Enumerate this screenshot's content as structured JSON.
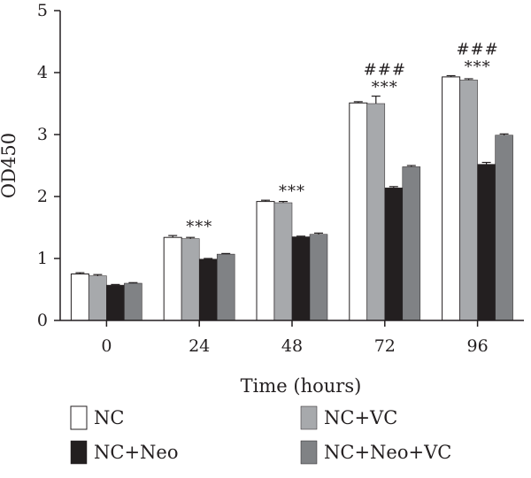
{
  "chart_data": {
    "type": "bar",
    "xlabel": "Time (hours)",
    "ylabel": "OD450",
    "ylim": [
      0,
      5
    ],
    "yticks": [
      0,
      1,
      2,
      3,
      4,
      5
    ],
    "categories": [
      "0",
      "24",
      "48",
      "72",
      "96"
    ],
    "series": [
      {
        "name": "NC",
        "color": "#ffffff",
        "values": [
          0.75,
          1.34,
          1.92,
          3.51,
          3.93
        ],
        "errors": [
          0.02,
          0.03,
          0.02,
          0.02,
          0.02
        ]
      },
      {
        "name": "NC+VC",
        "color": "#a7a9ac",
        "values": [
          0.72,
          1.32,
          1.9,
          3.5,
          3.88
        ],
        "errors": [
          0.02,
          0.02,
          0.02,
          0.12,
          0.02
        ]
      },
      {
        "name": "NC+Neo",
        "color": "#231f20",
        "values": [
          0.57,
          0.99,
          1.35,
          2.14,
          2.52
        ],
        "errors": [
          0.01,
          0.01,
          0.01,
          0.02,
          0.03
        ]
      },
      {
        "name": "NC+Neo+VC",
        "color": "#808285",
        "values": [
          0.6,
          1.07,
          1.39,
          2.48,
          2.99
        ],
        "errors": [
          0.01,
          0.01,
          0.02,
          0.02,
          0.02
        ]
      }
    ],
    "annotations": [
      {
        "category": "24",
        "lines": [
          "***"
        ]
      },
      {
        "category": "48",
        "lines": [
          "***"
        ]
      },
      {
        "category": "72",
        "lines": [
          "###",
          "***"
        ]
      },
      {
        "category": "96",
        "lines": [
          "###",
          "***"
        ]
      }
    ],
    "legend_placement": "bottom",
    "grid": false
  }
}
